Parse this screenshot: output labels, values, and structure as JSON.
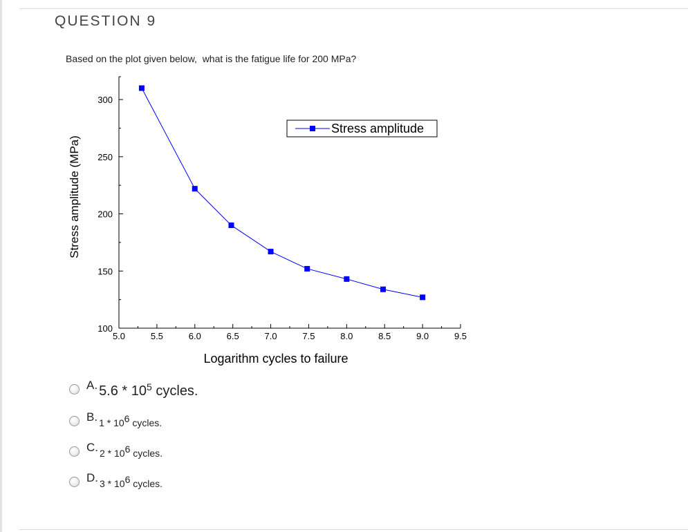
{
  "question": {
    "title": "QUESTION 9",
    "text": "Based on the plot given below,  what is the fatigue life for 200 MPa?"
  },
  "chart_data": {
    "type": "line",
    "title": "",
    "xlabel": "Logarithm cycles to failure",
    "ylabel": "Stress amplitude (MPa)",
    "xlim": [
      5.0,
      9.5
    ],
    "ylim": [
      100,
      320
    ],
    "x_ticks": [
      "5.0",
      "5.5",
      "6.0",
      "6.5",
      "7.0",
      "7.5",
      "8.0",
      "8.5",
      "9.0",
      "9.5"
    ],
    "y_ticks": [
      "100",
      "150",
      "200",
      "250",
      "300"
    ],
    "legend_position": "top-right",
    "grid": false,
    "series": [
      {
        "name": "Stress amplitude",
        "color": "#0000ff",
        "marker": "square",
        "x": [
          5.3,
          6.0,
          6.48,
          7.0,
          7.48,
          8.0,
          8.48,
          9.0
        ],
        "y": [
          310,
          222,
          190,
          167,
          152,
          143,
          134,
          127
        ]
      }
    ]
  },
  "options": [
    {
      "letter": "A.",
      "prefix": "5.6 * 10",
      "exponent": "5",
      "suffix": " cycles.",
      "style": "big"
    },
    {
      "letter": "B.",
      "prefix": "1 * 10",
      "exponent": "6",
      "suffix": " cycles.",
      "style": "small"
    },
    {
      "letter": "C.",
      "prefix": "2 * 10",
      "exponent": "6",
      "suffix": " cycles.",
      "style": "small"
    },
    {
      "letter": "D.",
      "prefix": "3 * 10",
      "exponent": "6",
      "suffix": " cycles.",
      "style": "small"
    }
  ]
}
